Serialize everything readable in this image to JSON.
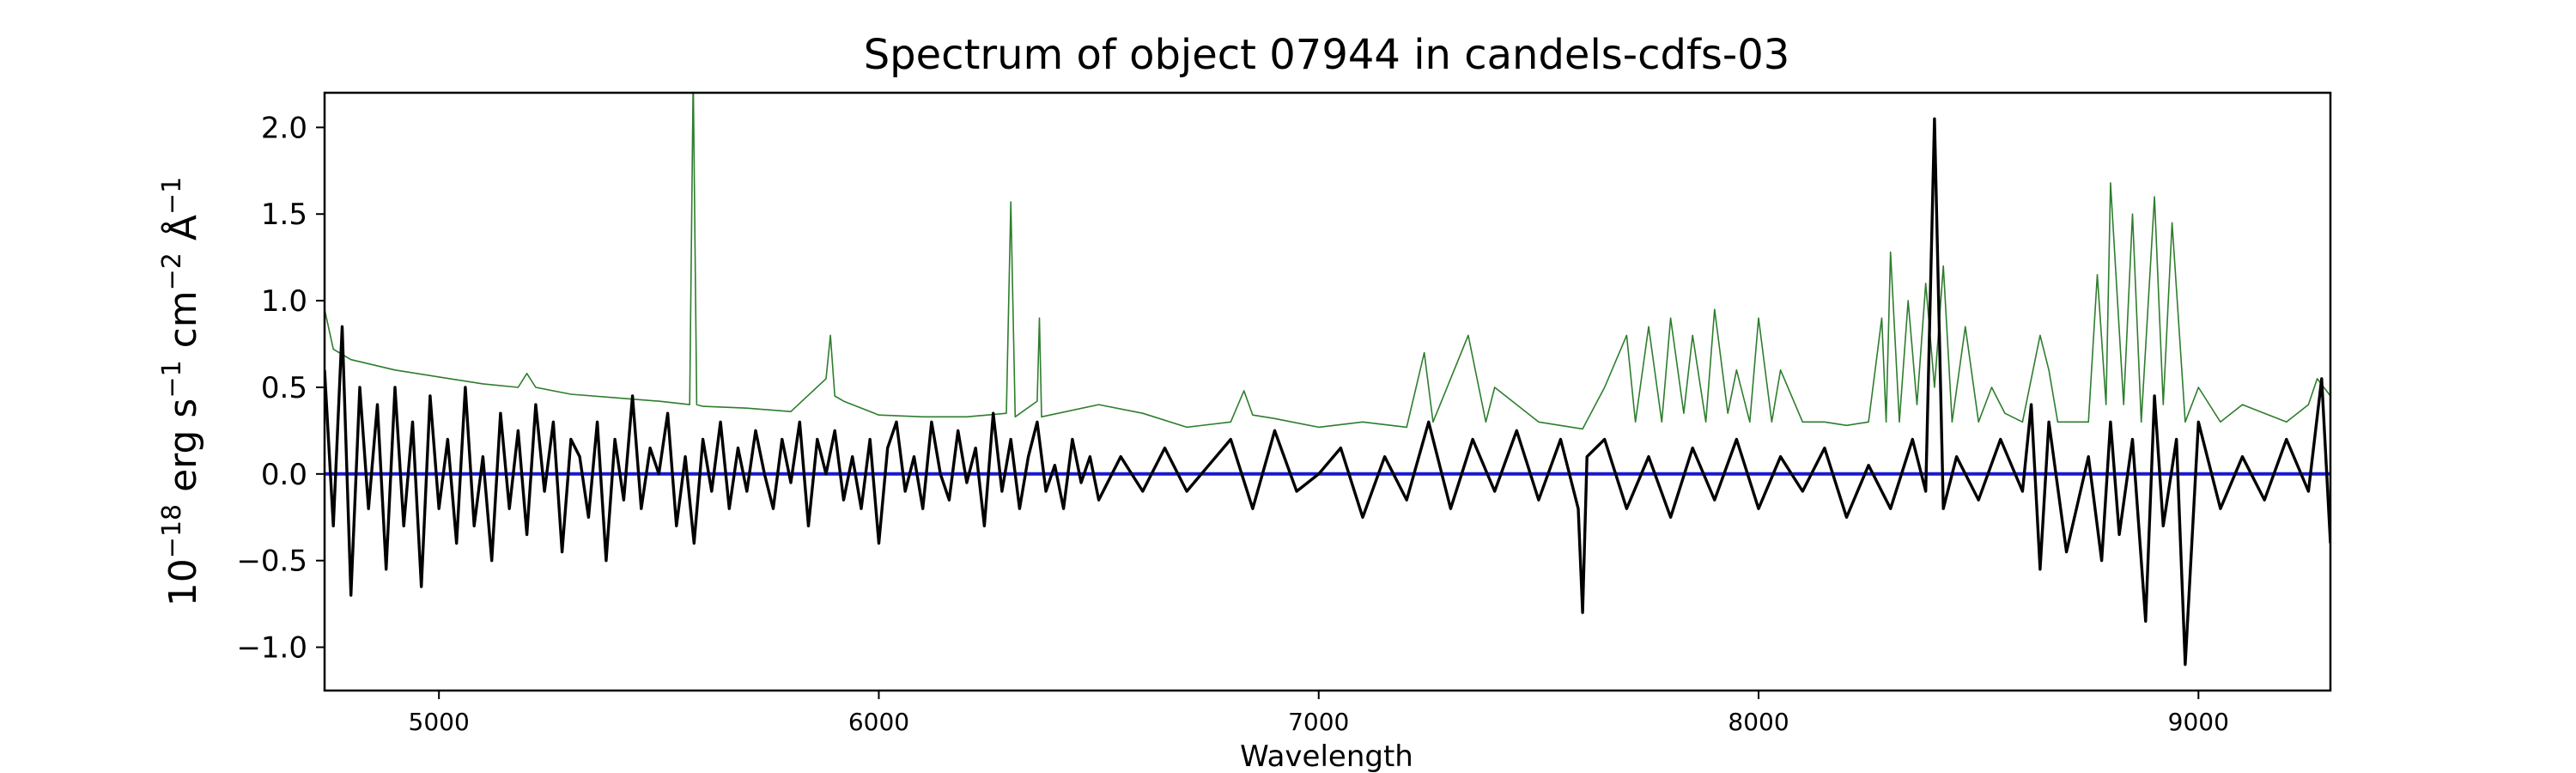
{
  "chart_data": {
    "type": "line",
    "title": "Spectrum of object 07944 in candels-cdfs-03",
    "xlabel": "Wavelength",
    "ylabel": {
      "parts": [
        "10",
        "−18",
        " erg s",
        "−1",
        " cm",
        "−2",
        " Å",
        "−1"
      ]
    },
    "xlim": [
      4740,
      9300
    ],
    "ylim": [
      -1.25,
      2.2
    ],
    "xticks": [
      5000,
      6000,
      7000,
      8000,
      9000
    ],
    "xtick_labels": [
      "5000",
      "6000",
      "7000",
      "8000",
      "9000"
    ],
    "yticks": [
      -1.0,
      -0.5,
      0.0,
      0.5,
      1.0,
      1.5,
      2.0
    ],
    "ytick_labels": [
      "−1.0",
      "−0.5",
      "0.0",
      "0.5",
      "1.0",
      "1.5",
      "2.0"
    ],
    "grid": false,
    "colors": {
      "flux": "#000000",
      "error": "#2e7d2e",
      "continuum": "#1a1acc"
    },
    "series": [
      {
        "key": "continuum",
        "x": [
          4740,
          9300
        ],
        "y": [
          0.0,
          0.0
        ]
      },
      {
        "key": "error",
        "x": [
          4740,
          4760,
          4800,
          4900,
          5000,
          5100,
          5180,
          5200,
          5220,
          5300,
          5400,
          5500,
          5570,
          5578,
          5586,
          5600,
          5700,
          5800,
          5880,
          5890,
          5900,
          5920,
          6000,
          6100,
          6200,
          6290,
          6300,
          6310,
          6360,
          6365,
          6370,
          6500,
          6600,
          6700,
          6800,
          6830,
          6850,
          6900,
          7000,
          7100,
          7200,
          7240,
          7260,
          7300,
          7340,
          7380,
          7400,
          7500,
          7600,
          7650,
          7700,
          7720,
          7750,
          7780,
          7800,
          7830,
          7850,
          7880,
          7900,
          7930,
          7950,
          7980,
          8000,
          8030,
          8050,
          8100,
          8150,
          8200,
          8250,
          8280,
          8290,
          8300,
          8320,
          8340,
          8360,
          8380,
          8400,
          8420,
          8440,
          8470,
          8500,
          8530,
          8560,
          8600,
          8640,
          8660,
          8680,
          8700,
          8750,
          8770,
          8790,
          8800,
          8830,
          8850,
          8870,
          8900,
          8920,
          8940,
          8970,
          9000,
          9050,
          9100,
          9150,
          9200,
          9250,
          9270,
          9300
        ],
        "y": [
          0.95,
          0.72,
          0.66,
          0.6,
          0.56,
          0.52,
          0.5,
          0.58,
          0.5,
          0.46,
          0.44,
          0.42,
          0.4,
          2.3,
          0.4,
          0.39,
          0.38,
          0.36,
          0.55,
          0.8,
          0.45,
          0.42,
          0.34,
          0.33,
          0.33,
          0.35,
          1.57,
          0.33,
          0.42,
          0.9,
          0.33,
          0.4,
          0.35,
          0.27,
          0.3,
          0.48,
          0.34,
          0.32,
          0.27,
          0.3,
          0.27,
          0.7,
          0.3,
          0.55,
          0.8,
          0.3,
          0.5,
          0.3,
          0.26,
          0.5,
          0.8,
          0.3,
          0.85,
          0.3,
          0.9,
          0.35,
          0.8,
          0.3,
          0.95,
          0.35,
          0.6,
          0.3,
          0.9,
          0.3,
          0.6,
          0.3,
          0.3,
          0.28,
          0.3,
          0.9,
          0.3,
          1.28,
          0.3,
          1.0,
          0.4,
          1.1,
          0.5,
          1.2,
          0.3,
          0.85,
          0.3,
          0.5,
          0.35,
          0.3,
          0.8,
          0.6,
          0.3,
          0.3,
          0.3,
          1.15,
          0.4,
          1.68,
          0.4,
          1.5,
          0.3,
          1.6,
          0.4,
          1.45,
          0.3,
          0.5,
          0.3,
          0.4,
          0.35,
          0.3,
          0.4,
          0.55,
          0.45
        ]
      },
      {
        "key": "flux",
        "x": [
          4740,
          4760,
          4780,
          4800,
          4820,
          4840,
          4860,
          4880,
          4900,
          4920,
          4940,
          4960,
          4980,
          5000,
          5020,
          5040,
          5060,
          5080,
          5100,
          5120,
          5140,
          5160,
          5180,
          5200,
          5220,
          5240,
          5260,
          5280,
          5300,
          5320,
          5340,
          5360,
          5380,
          5400,
          5420,
          5440,
          5460,
          5480,
          5500,
          5520,
          5540,
          5560,
          5580,
          5600,
          5620,
          5640,
          5660,
          5680,
          5700,
          5720,
          5740,
          5760,
          5780,
          5800,
          5820,
          5840,
          5860,
          5880,
          5900,
          5920,
          5940,
          5960,
          5980,
          6000,
          6020,
          6040,
          6060,
          6080,
          6100,
          6120,
          6140,
          6160,
          6180,
          6200,
          6220,
          6240,
          6260,
          6280,
          6300,
          6320,
          6340,
          6360,
          6380,
          6400,
          6420,
          6440,
          6460,
          6480,
          6500,
          6550,
          6600,
          6650,
          6700,
          6750,
          6800,
          6850,
          6900,
          6950,
          7000,
          7050,
          7100,
          7150,
          7200,
          7250,
          7300,
          7350,
          7400,
          7450,
          7500,
          7550,
          7590,
          7600,
          7610,
          7650,
          7700,
          7750,
          7800,
          7850,
          7900,
          7950,
          8000,
          8050,
          8100,
          8150,
          8200,
          8250,
          8300,
          8350,
          8380,
          8400,
          8420,
          8450,
          8500,
          8550,
          8600,
          8620,
          8640,
          8660,
          8700,
          8750,
          8780,
          8800,
          8820,
          8850,
          8880,
          8900,
          8920,
          8950,
          8970,
          9000,
          9050,
          9100,
          9150,
          9200,
          9250,
          9280,
          9300
        ],
        "y": [
          0.6,
          -0.3,
          0.85,
          -0.7,
          0.5,
          -0.2,
          0.4,
          -0.55,
          0.5,
          -0.3,
          0.3,
          -0.65,
          0.45,
          -0.2,
          0.2,
          -0.4,
          0.5,
          -0.3,
          0.1,
          -0.5,
          0.35,
          -0.2,
          0.25,
          -0.35,
          0.4,
          -0.1,
          0.3,
          -0.45,
          0.2,
          0.1,
          -0.25,
          0.3,
          -0.5,
          0.2,
          -0.15,
          0.45,
          -0.2,
          0.15,
          0.0,
          0.35,
          -0.3,
          0.1,
          -0.4,
          0.2,
          -0.1,
          0.3,
          -0.2,
          0.15,
          -0.1,
          0.25,
          0.0,
          -0.2,
          0.2,
          -0.05,
          0.3,
          -0.3,
          0.2,
          0.0,
          0.25,
          -0.15,
          0.1,
          -0.2,
          0.2,
          -0.4,
          0.15,
          0.3,
          -0.1,
          0.1,
          -0.2,
          0.3,
          0.0,
          -0.15,
          0.25,
          -0.05,
          0.15,
          -0.3,
          0.35,
          -0.1,
          0.2,
          -0.2,
          0.1,
          0.3,
          -0.1,
          0.05,
          -0.2,
          0.2,
          -0.05,
          0.1,
          -0.15,
          0.1,
          -0.1,
          0.15,
          -0.1,
          0.05,
          0.2,
          -0.2,
          0.25,
          -0.1,
          0.0,
          0.15,
          -0.25,
          0.1,
          -0.15,
          0.3,
          -0.2,
          0.2,
          -0.1,
          0.25,
          -0.15,
          0.2,
          -0.2,
          -0.8,
          0.1,
          0.2,
          -0.2,
          0.1,
          -0.25,
          0.15,
          -0.15,
          0.2,
          -0.2,
          0.1,
          -0.1,
          0.15,
          -0.25,
          0.05,
          -0.2,
          0.2,
          -0.1,
          2.05,
          -0.2,
          0.1,
          -0.15,
          0.2,
          -0.1,
          0.4,
          -0.55,
          0.3,
          -0.45,
          0.1,
          -0.5,
          0.3,
          -0.35,
          0.2,
          -0.85,
          0.45,
          -0.3,
          0.2,
          -1.1,
          0.3,
          -0.2,
          0.1,
          -0.15,
          0.2,
          -0.1,
          0.55,
          -0.4
        ]
      }
    ]
  }
}
